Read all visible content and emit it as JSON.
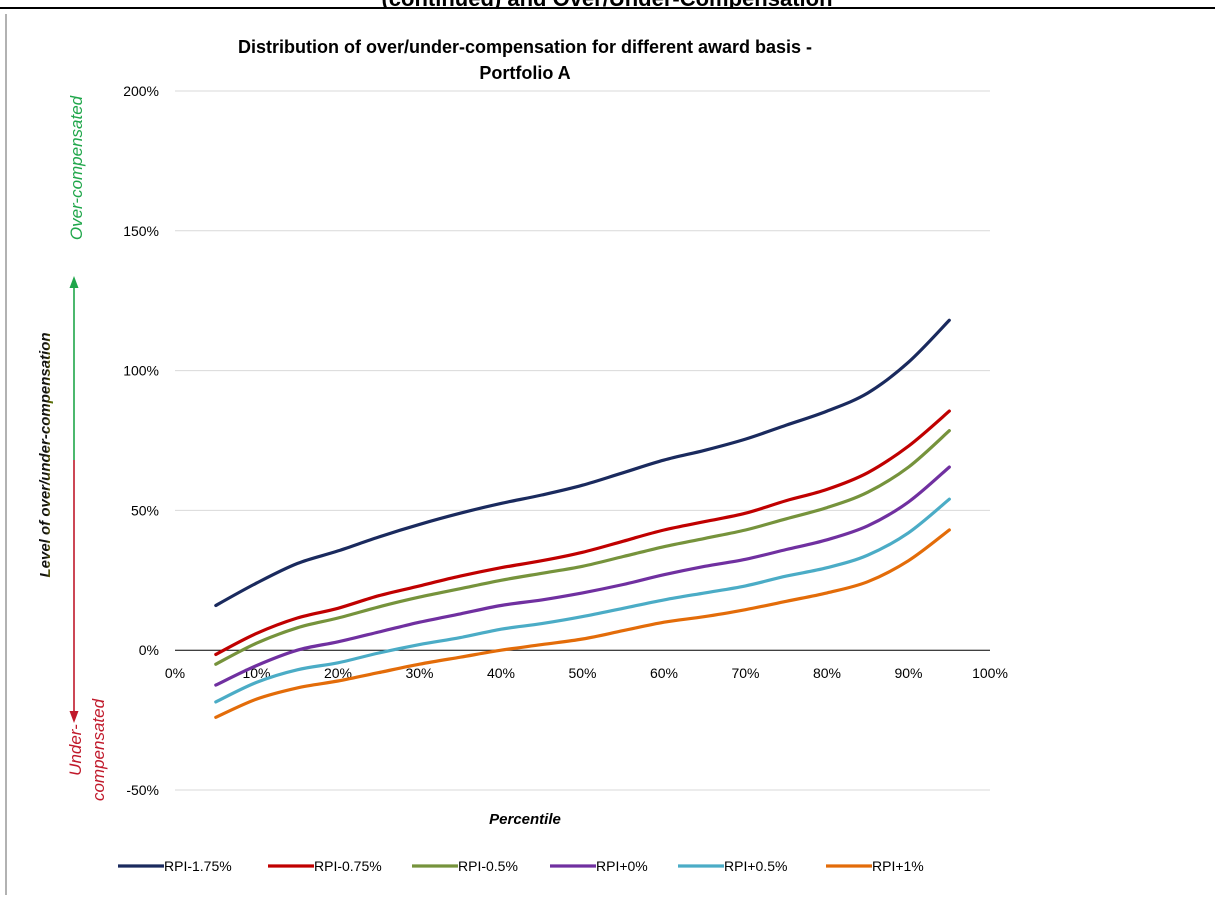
{
  "header_fragment": "(continued) and Over/Under-Compensation",
  "chart_data": {
    "type": "line",
    "title": "Distribution of over/under-compensation for different award basis -",
    "subtitle": "Portfolio A",
    "xlabel": "Percentile",
    "ylabel": "Level of over/under-compensation",
    "xlim": [
      0,
      1
    ],
    "ylim": [
      -0.5,
      2
    ],
    "x_ticks": [
      0,
      0.1,
      0.2,
      0.3,
      0.4,
      0.5,
      0.6,
      0.7,
      0.8,
      0.9,
      1
    ],
    "x_tick_labels": [
      "0%",
      "10%",
      "20%",
      "30%",
      "40%",
      "50%",
      "60%",
      "70%",
      "80%",
      "90%",
      "100%"
    ],
    "y_ticks": [
      -0.5,
      0,
      0.5,
      1,
      1.5,
      2
    ],
    "y_tick_labels": [
      "-50%",
      "0%",
      "50%",
      "100%",
      "150%",
      "200%"
    ],
    "grid": "horizontal",
    "legend_position": "bottom",
    "annotations": {
      "over_label": "Over-compensated",
      "under_label_line1": "Under-",
      "under_label_line2": "compensated",
      "over_color": "#1fa64a",
      "under_color": "#c0192b"
    },
    "x": [
      0.05,
      0.1,
      0.15,
      0.2,
      0.25,
      0.3,
      0.35,
      0.4,
      0.45,
      0.5,
      0.55,
      0.6,
      0.65,
      0.7,
      0.75,
      0.8,
      0.85,
      0.9,
      0.95
    ],
    "series": [
      {
        "name": "RPI-1.75%",
        "color": "#1a2a5e",
        "values": [
          0.16,
          0.24,
          0.31,
          0.355,
          0.405,
          0.45,
          0.49,
          0.525,
          0.555,
          0.59,
          0.635,
          0.68,
          0.715,
          0.755,
          0.805,
          0.855,
          0.92,
          1.03,
          1.18
        ]
      },
      {
        "name": "RPI-0.75%",
        "color": "#c00000",
        "values": [
          -0.015,
          0.06,
          0.115,
          0.15,
          0.195,
          0.23,
          0.265,
          0.295,
          0.32,
          0.35,
          0.39,
          0.43,
          0.46,
          0.49,
          0.535,
          0.575,
          0.635,
          0.73,
          0.855
        ]
      },
      {
        "name": "RPI-0.5%",
        "color": "#76933c",
        "values": [
          -0.05,
          0.025,
          0.08,
          0.115,
          0.155,
          0.19,
          0.22,
          0.25,
          0.275,
          0.3,
          0.335,
          0.37,
          0.4,
          0.43,
          0.47,
          0.51,
          0.565,
          0.655,
          0.785
        ]
      },
      {
        "name": "RPI+0%",
        "color": "#7030a0",
        "values": [
          -0.125,
          -0.055,
          0.0,
          0.03,
          0.065,
          0.1,
          0.13,
          0.16,
          0.18,
          0.205,
          0.235,
          0.27,
          0.3,
          0.325,
          0.36,
          0.395,
          0.445,
          0.53,
          0.655
        ]
      },
      {
        "name": "RPI+0.5%",
        "color": "#4bacc6",
        "values": [
          -0.185,
          -0.115,
          -0.07,
          -0.045,
          -0.01,
          0.02,
          0.045,
          0.075,
          0.095,
          0.12,
          0.15,
          0.18,
          0.205,
          0.23,
          0.265,
          0.295,
          0.34,
          0.42,
          0.54
        ]
      },
      {
        "name": "RPI+1%",
        "color": "#e36c09",
        "values": [
          -0.24,
          -0.175,
          -0.135,
          -0.11,
          -0.08,
          -0.05,
          -0.025,
          0.0,
          0.02,
          0.04,
          0.07,
          0.1,
          0.12,
          0.145,
          0.175,
          0.205,
          0.245,
          0.32,
          0.43
        ]
      }
    ]
  }
}
